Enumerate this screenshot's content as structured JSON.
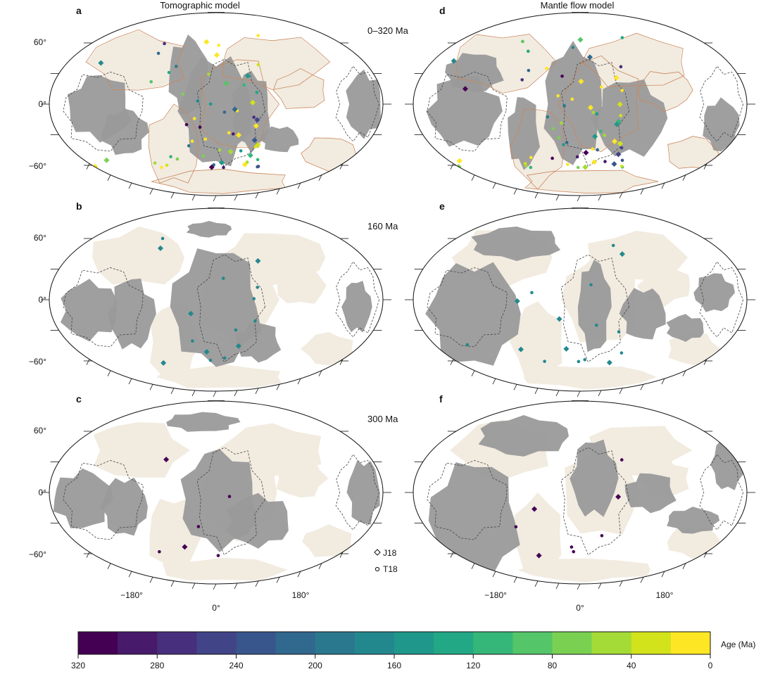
{
  "titles": {
    "left": "Tomographic model",
    "right": "Mantle flow model"
  },
  "panels": [
    {
      "id": "a",
      "col": "left",
      "row": 0,
      "age_label": "0–320 Ma"
    },
    {
      "id": "b",
      "col": "left",
      "row": 1,
      "age_label": "160 Ma"
    },
    {
      "id": "c",
      "col": "left",
      "row": 2,
      "age_label": "300 Ma"
    },
    {
      "id": "d",
      "col": "right",
      "row": 0,
      "age_label": ""
    },
    {
      "id": "e",
      "col": "right",
      "row": 1,
      "age_label": ""
    },
    {
      "id": "f",
      "col": "right",
      "row": 2,
      "age_label": ""
    }
  ],
  "lat_labels": [
    "60°",
    "0°",
    "−60°"
  ],
  "lon_labels": [
    "−180°",
    "0°",
    "180°"
  ],
  "legend": {
    "diamond": "J18",
    "circle": "T18"
  },
  "colorbar": {
    "title": "Age (Ma)",
    "colors": [
      "#440154",
      "#481a6c",
      "#472f7d",
      "#414487",
      "#39568c",
      "#31688e",
      "#2a788e",
      "#23888e",
      "#1f988b",
      "#22a884",
      "#35b779",
      "#54c568",
      "#7ad151",
      "#a5db36",
      "#d2e21b",
      "#fde725"
    ],
    "ticks": [
      "320",
      "280",
      "240",
      "200",
      "160",
      "120",
      "80",
      "40",
      "0"
    ]
  },
  "colors": {
    "gray_region": "#9a9a9a",
    "land": "#f2ebe0",
    "coast": "#c9875a",
    "outline": "#111111"
  }
}
